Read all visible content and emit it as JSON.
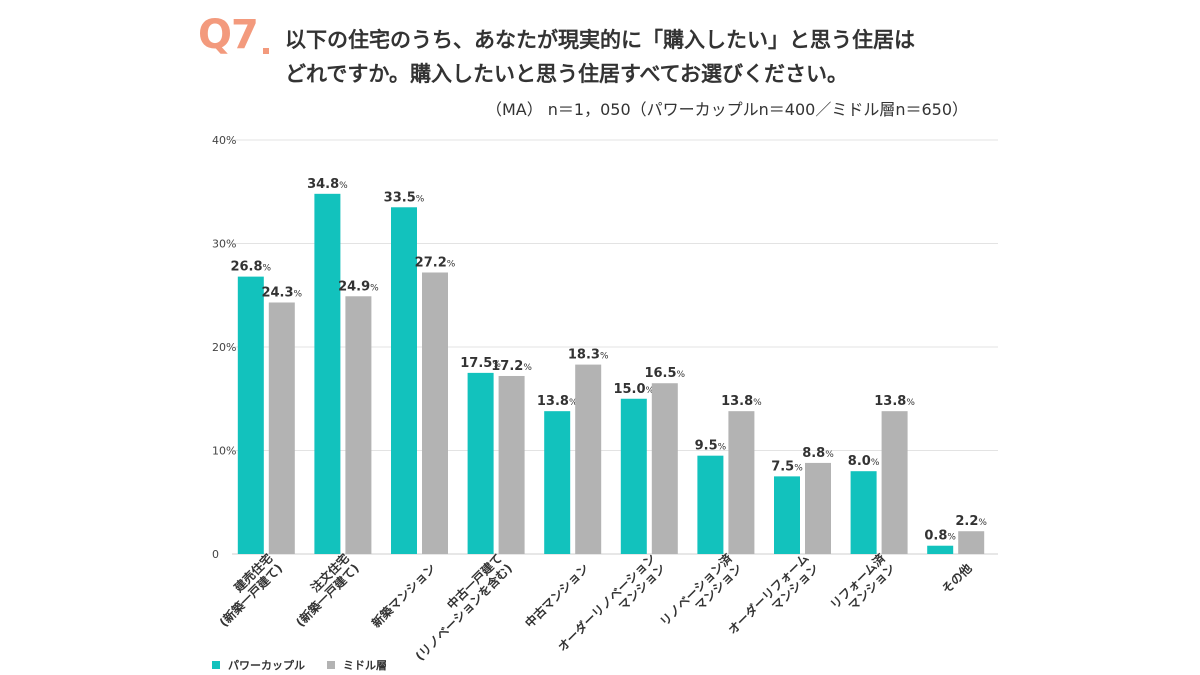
{
  "question": {
    "number": "Q7",
    "line1": "以下の住宅のうち、あなたが現実的に「購入したい」と思う住居は",
    "line2": "どれですか。購入したいと思う住居すべてお選びください。",
    "note": "（MA） n＝1，050（パワーカップルn＝400／ミドル層n＝650）",
    "accent_color": "#f39a7d"
  },
  "chart_data": {
    "type": "bar",
    "categories": [
      [
        "建売住宅",
        "(新築一戸建て)"
      ],
      [
        "注文住宅",
        "(新築一戸建て)"
      ],
      [
        "新築マンション"
      ],
      [
        "中古一戸建て",
        "(リノベーションを含む)"
      ],
      [
        "中古マンション"
      ],
      [
        "オーダーリノベーション",
        "マンション"
      ],
      [
        "リノベーション済",
        "マンション"
      ],
      [
        "オーダーリフォーム",
        "マンション"
      ],
      [
        "リフォーム済",
        "マンション"
      ],
      [
        "その他"
      ]
    ],
    "series": [
      {
        "name": "パワーカップル",
        "color": "#12c2bd",
        "values": [
          26.8,
          34.8,
          33.5,
          17.5,
          13.8,
          15.0,
          9.5,
          7.5,
          8.0,
          0.8
        ],
        "labels": [
          "26.8",
          "34.8",
          "33.5",
          "17.5",
          "13.8",
          "15.0",
          "9.5",
          "7.5",
          "8.0",
          "0.8"
        ]
      },
      {
        "name": "ミドル層",
        "color": "#b3b3b3",
        "values": [
          24.3,
          24.9,
          27.2,
          17.2,
          18.3,
          16.5,
          13.8,
          8.8,
          13.8,
          2.2
        ],
        "labels": [
          "24.3",
          "24.9",
          "27.2",
          "17.2",
          "18.3",
          "16.5",
          "13.8",
          "8.8",
          "13.8",
          "2.2"
        ]
      }
    ],
    "label_unit": "%",
    "ylim": [
      0,
      40
    ],
    "yticks": [
      0,
      10,
      20,
      30,
      40
    ],
    "ytick_labels": [
      "0",
      "10%",
      "20%",
      "30%",
      "40%"
    ],
    "grid": true,
    "legend_position": "bottom-left"
  }
}
